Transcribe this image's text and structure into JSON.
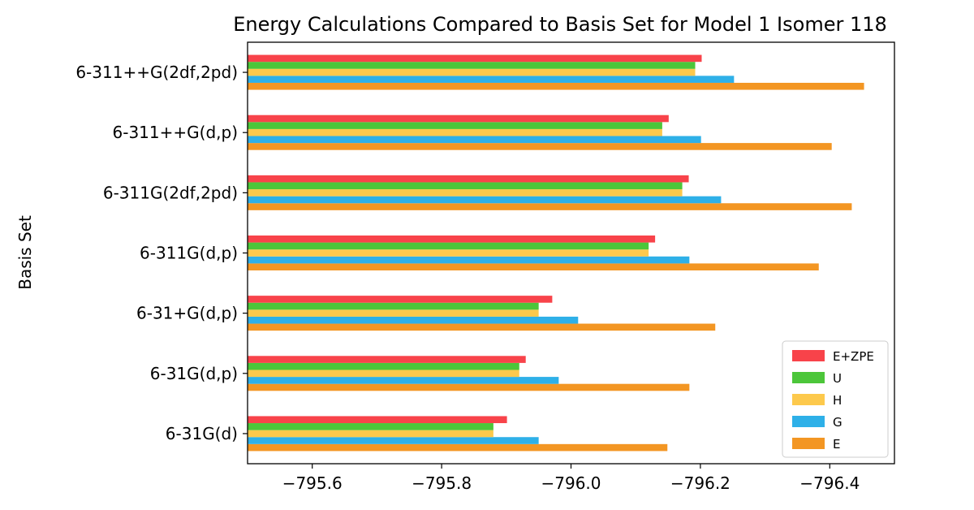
{
  "chart_data": {
    "type": "bar",
    "orientation": "horizontal",
    "title": "Energy Calculations Compared to Basis Set for Model 1 Isomer 118",
    "xlabel": "",
    "ylabel": "Basis Set",
    "xlim": [
      -795.5,
      -796.5
    ],
    "x_ticks": [
      -795.6,
      -795.8,
      -796.0,
      -796.2,
      -796.4
    ],
    "x_tick_labels": [
      "−795.6",
      "−795.8",
      "−796.0",
      "−796.2",
      "−796.4"
    ],
    "categories": [
      "6-31G(d)",
      "6-31G(d,p)",
      "6-31+G(d,p)",
      "6-311G(d,p)",
      "6-311G(2df,2pd)",
      "6-311++G(d,p)",
      "6-311++G(2df,2pd)"
    ],
    "series": [
      {
        "name": "E",
        "color": "#f39623",
        "values": [
          -796.149,
          -796.183,
          -796.223,
          -796.383,
          -796.434,
          -796.403,
          -796.453
        ]
      },
      {
        "name": "G",
        "color": "#2eb0e8",
        "values": [
          -795.95,
          -795.981,
          -796.011,
          -796.183,
          -796.232,
          -796.201,
          -796.252
        ]
      },
      {
        "name": "H",
        "color": "#fdc94c",
        "values": [
          -795.88,
          -795.92,
          -795.95,
          -796.12,
          -796.172,
          -796.141,
          -796.192
        ]
      },
      {
        "name": "U",
        "color": "#4cc63a",
        "values": [
          -795.88,
          -795.92,
          -795.95,
          -796.12,
          -796.172,
          -796.141,
          -796.192
        ]
      },
      {
        "name": "E+ZPE",
        "color": "#f8434a",
        "values": [
          -795.901,
          -795.93,
          -795.971,
          -796.13,
          -796.182,
          -796.151,
          -796.202
        ]
      }
    ],
    "legend": {
      "position": "lower right",
      "order": [
        "E+ZPE",
        "U",
        "H",
        "G",
        "E"
      ]
    },
    "grid": false
  }
}
